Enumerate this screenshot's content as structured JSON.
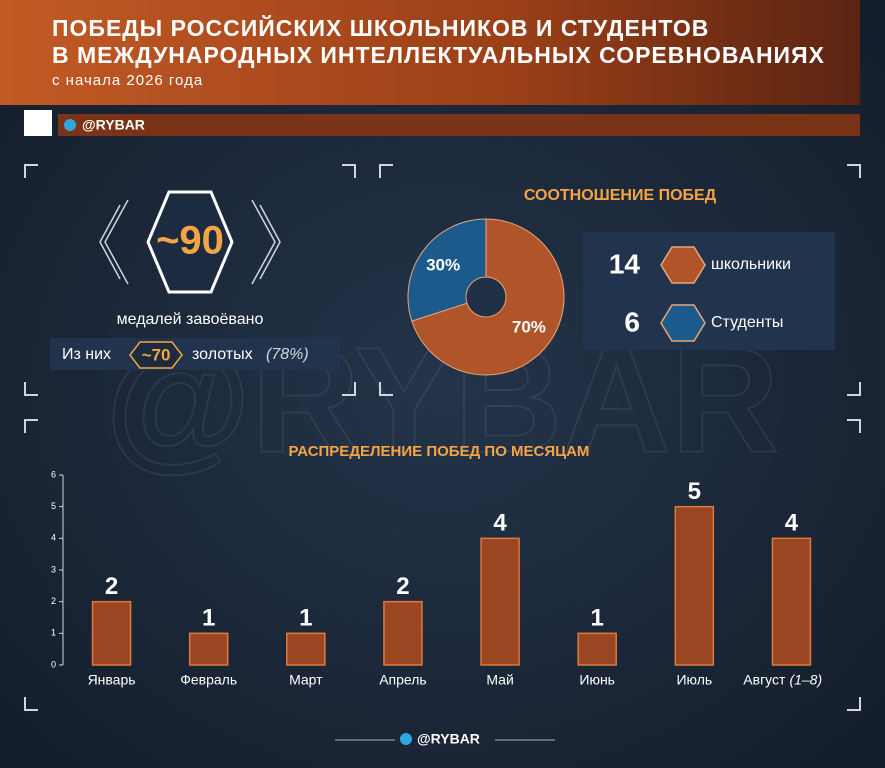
{
  "header": {
    "title_line1": "ПОБЕДЫ РОССИЙСКИХ ШКОЛЬНИКОВ И СТУДЕНТОВ",
    "title_line2": "В МЕЖДУНАРОДНЫХ ИНТЕЛЛЕКТУАЛЬНЫХ СОРЕВНОВАНИЯХ",
    "subtitle": "с начала 2026 года",
    "handle": "@RYBAR"
  },
  "watermark": "@RYBAR",
  "medals": {
    "total": "~90",
    "total_caption": "медалей завоёвано",
    "gold_prefix": "Из них",
    "gold": "~70",
    "gold_caption": "золотых",
    "gold_share": "(78%)"
  },
  "footer": {
    "handle": "@RYBAR"
  },
  "chart_data": [
    {
      "type": "pie",
      "title": "СООТНОШЕНИЕ ПОБЕД",
      "categories": [
        "школьники",
        "Студенты"
      ],
      "values": [
        70,
        30
      ],
      "value_labels": [
        "70%",
        "30%"
      ],
      "counts": [
        14,
        6
      ],
      "colors": [
        "#b0552a",
        "#1d5a8c"
      ]
    },
    {
      "type": "bar",
      "title": "РАСПРЕДЕЛЕНИЕ ПОБЕД ПО МЕСЯЦАМ",
      "categories": [
        "Январь",
        "Февраль",
        "Март",
        "Апрель",
        "Май",
        "Июнь",
        "Июль",
        "Август"
      ],
      "last_category_note": "(1–8)",
      "values": [
        2,
        1,
        1,
        2,
        4,
        1,
        5,
        4
      ],
      "color": "#9a4622",
      "ylim": [
        0,
        6
      ],
      "yticks": [
        0,
        1,
        2,
        3,
        4,
        5,
        6
      ]
    }
  ]
}
